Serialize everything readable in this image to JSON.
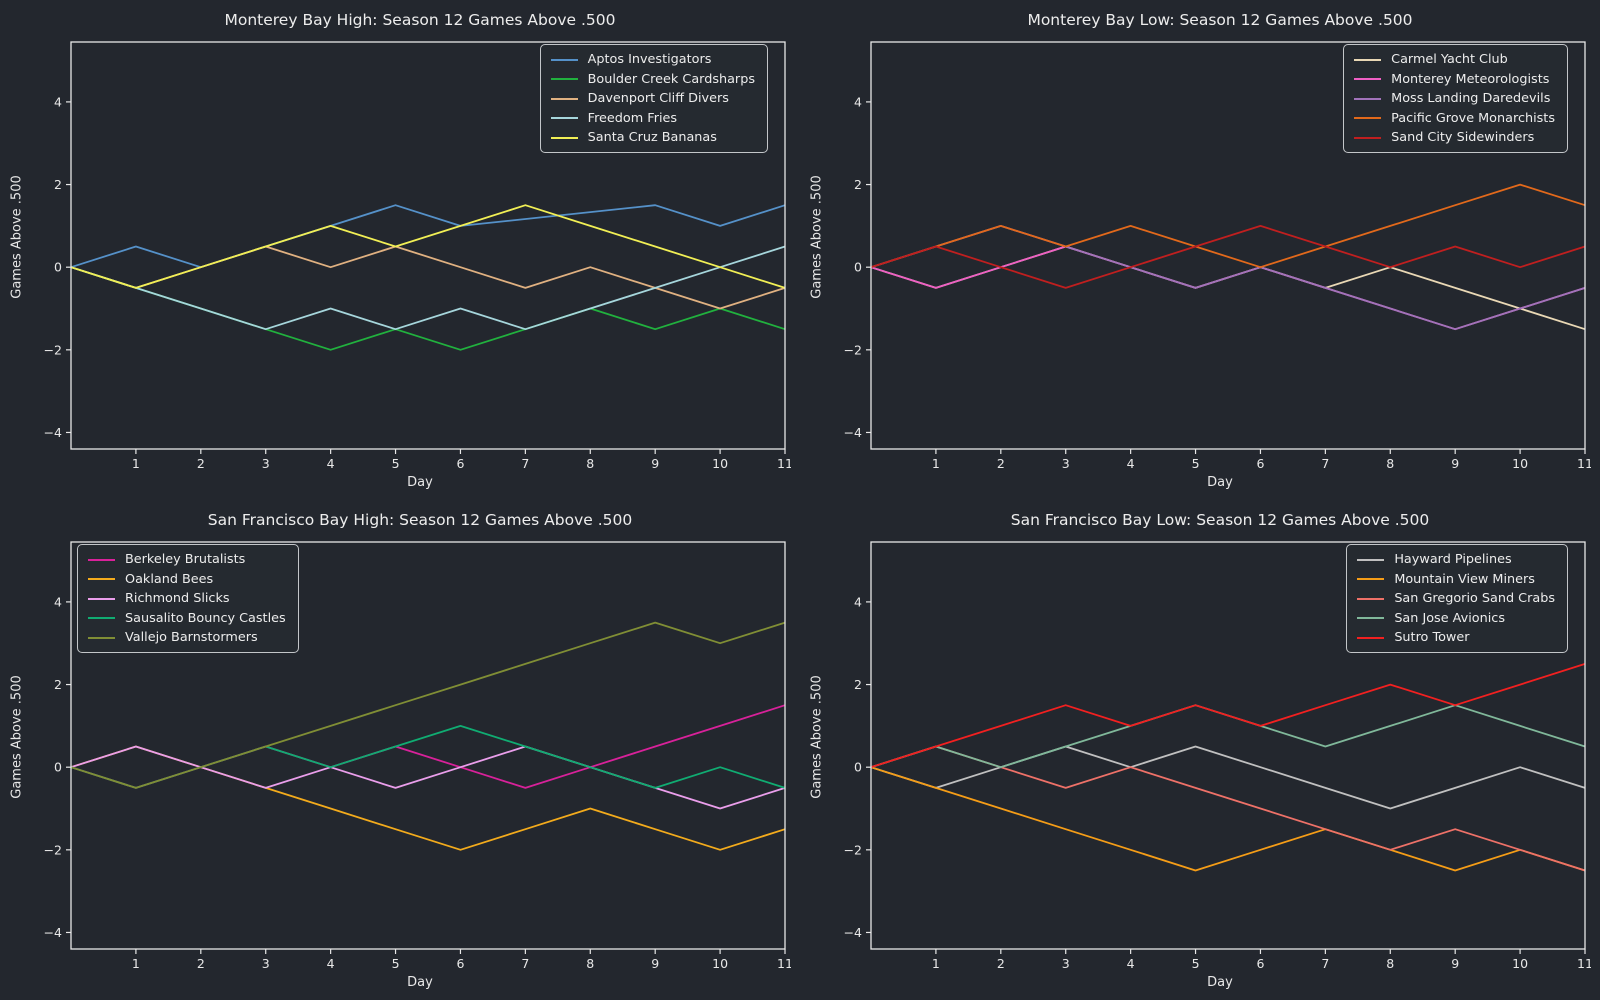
{
  "page": {
    "background": "#23272e",
    "text_color": "#eaeaea",
    "axis_color": "#e8e8e8"
  },
  "shared": {
    "xlabel": "Day",
    "ylabel": "Games Above .500",
    "x_ticks": [
      1,
      2,
      3,
      4,
      5,
      6,
      7,
      8,
      9,
      10,
      11
    ],
    "y_ticks": [
      -4,
      -2,
      0,
      2,
      4
    ],
    "xlim": [
      0,
      11
    ],
    "ylim": [
      -4.4,
      5.45
    ],
    "grid": false
  },
  "chart_data": [
    {
      "type": "line",
      "title": "Monterey Bay High: Season 12 Games Above .500",
      "legend_position": "top-right",
      "series": [
        {
          "name": "Aptos Investigators",
          "color": "#5591c9",
          "points": [
            [
              0,
              0
            ],
            [
              1,
              0.5
            ],
            [
              2,
              0
            ],
            [
              3,
              0.5
            ],
            [
              4,
              1
            ],
            [
              5,
              1.5
            ],
            [
              6,
              1
            ],
            [
              9,
              1.5
            ],
            [
              10,
              1
            ],
            [
              11,
              1.5
            ]
          ]
        },
        {
          "name": "Boulder Creek Cardsharps",
          "color": "#21b13e",
          "points": [
            [
              0,
              0
            ],
            [
              1,
              -0.5
            ],
            [
              2,
              -1
            ],
            [
              3,
              -1.5
            ],
            [
              4,
              -2
            ],
            [
              5,
              -1.5
            ],
            [
              6,
              -2
            ],
            [
              7,
              -1.5
            ],
            [
              8,
              -1
            ],
            [
              9,
              -1.5
            ],
            [
              10,
              -1
            ],
            [
              11,
              -1.5
            ]
          ]
        },
        {
          "name": "Davenport Cliff Divers",
          "color": "#e0b181",
          "points": [
            [
              0,
              0
            ],
            [
              1,
              -0.5
            ],
            [
              2,
              0
            ],
            [
              3,
              0.5
            ],
            [
              4,
              0
            ],
            [
              5,
              0.5
            ],
            [
              6,
              0
            ],
            [
              7,
              -0.5
            ],
            [
              8,
              0
            ],
            [
              9,
              -0.5
            ],
            [
              10,
              -1
            ],
            [
              11,
              -0.5
            ]
          ]
        },
        {
          "name": "Freedom Fries",
          "color": "#a6d6dc",
          "points": [
            [
              0,
              0
            ],
            [
              1,
              -0.5
            ],
            [
              2,
              -1
            ],
            [
              3,
              -1.5
            ],
            [
              4,
              -1
            ],
            [
              5,
              -1.5
            ],
            [
              6,
              -1
            ],
            [
              7,
              -1.5
            ],
            [
              8,
              -1
            ],
            [
              9,
              -0.5
            ],
            [
              10,
              0
            ],
            [
              11,
              0.5
            ]
          ]
        },
        {
          "name": "Santa Cruz Bananas",
          "color": "#f1ef55",
          "points": [
            [
              0,
              0
            ],
            [
              1,
              -0.5
            ],
            [
              2,
              0
            ],
            [
              3,
              0.5
            ],
            [
              4,
              1
            ],
            [
              5,
              0.5
            ],
            [
              6,
              1
            ],
            [
              7,
              1.5
            ],
            [
              8,
              1
            ],
            [
              9,
              0.5
            ],
            [
              10,
              0
            ],
            [
              11,
              -0.5
            ]
          ]
        }
      ]
    },
    {
      "type": "line",
      "title": "Monterey Bay Low: Season 12 Games Above .500",
      "legend_position": "top-right",
      "series": [
        {
          "name": "Carmel Yacht Club",
          "color": "#e9d8b5",
          "points": [
            [
              0,
              0
            ],
            [
              1,
              -0.5
            ],
            [
              2,
              0
            ],
            [
              3,
              0.5
            ],
            [
              4,
              0
            ],
            [
              5,
              -0.5
            ],
            [
              6,
              0
            ],
            [
              7,
              -0.5
            ],
            [
              8,
              0
            ],
            [
              9,
              -0.5
            ],
            [
              10,
              -1
            ],
            [
              11,
              -1.5
            ]
          ]
        },
        {
          "name": "Monterey Meteorologists",
          "color": "#ef5fc4",
          "points": [
            [
              0,
              0
            ],
            [
              1,
              -0.5
            ],
            [
              2,
              0
            ],
            [
              3,
              0.5
            ],
            [
              4,
              0
            ],
            [
              5,
              -0.5
            ],
            [
              6,
              0
            ],
            [
              7,
              -0.5
            ],
            [
              8,
              -1
            ],
            [
              9,
              -1.5
            ],
            [
              10,
              -1
            ],
            [
              11,
              -0.5
            ]
          ]
        },
        {
          "name": "Moss Landing Daredevils",
          "color": "#a173ba",
          "points": [
            [
              0,
              0
            ],
            [
              1,
              0.5
            ],
            [
              2,
              1
            ],
            [
              3,
              0.5
            ],
            [
              4,
              0
            ],
            [
              5,
              -0.5
            ],
            [
              6,
              0
            ],
            [
              7,
              -0.5
            ],
            [
              8,
              -1
            ],
            [
              9,
              -1.5
            ],
            [
              10,
              -1
            ],
            [
              11,
              -0.5
            ]
          ]
        },
        {
          "name": "Pacific Grove Monarchists",
          "color": "#e2691b",
          "points": [
            [
              0,
              0
            ],
            [
              1,
              0.5
            ],
            [
              2,
              1
            ],
            [
              3,
              0.5
            ],
            [
              4,
              1
            ],
            [
              5,
              0.5
            ],
            [
              6,
              0
            ],
            [
              7,
              0.5
            ],
            [
              8,
              1
            ],
            [
              9,
              1.5
            ],
            [
              10,
              2
            ],
            [
              11,
              1.5
            ]
          ]
        },
        {
          "name": "Sand City Sidewinders",
          "color": "#c01f1f",
          "points": [
            [
              0,
              0
            ],
            [
              1,
              0.5
            ],
            [
              2,
              0
            ],
            [
              3,
              -0.5
            ],
            [
              4,
              0
            ],
            [
              5,
              0.5
            ],
            [
              6,
              1
            ],
            [
              7,
              0.5
            ],
            [
              8,
              0
            ],
            [
              9,
              0.5
            ],
            [
              10,
              0
            ],
            [
              11,
              0.5
            ]
          ]
        }
      ]
    },
    {
      "type": "line",
      "title": "San Francisco Bay High: Season 12 Games Above .500",
      "legend_position": "top-left",
      "series": [
        {
          "name": "Berkeley Brutalists",
          "color": "#d8219a",
          "points": [
            [
              0,
              0
            ],
            [
              1,
              -0.5
            ],
            [
              2,
              0
            ],
            [
              3,
              0.5
            ],
            [
              4,
              0
            ],
            [
              5,
              0.5
            ],
            [
              6,
              0
            ],
            [
              7,
              -0.5
            ],
            [
              8,
              0
            ],
            [
              9,
              0.5
            ],
            [
              10,
              1
            ],
            [
              11,
              1.5
            ]
          ]
        },
        {
          "name": "Oakland Bees",
          "color": "#f3ab1c",
          "points": [
            [
              0,
              0
            ],
            [
              1,
              0.5
            ],
            [
              2,
              0
            ],
            [
              3,
              -0.5
            ],
            [
              4,
              -1
            ],
            [
              5,
              -1.5
            ],
            [
              6,
              -2
            ],
            [
              7,
              -1.5
            ],
            [
              8,
              -1
            ],
            [
              9,
              -1.5
            ],
            [
              10,
              -2
            ],
            [
              11,
              -1.5
            ]
          ]
        },
        {
          "name": "Richmond Slicks",
          "color": "#ea9eeb",
          "points": [
            [
              0,
              0
            ],
            [
              1,
              0.5
            ],
            [
              2,
              0
            ],
            [
              3,
              -0.5
            ],
            [
              4,
              0
            ],
            [
              5,
              -0.5
            ],
            [
              6,
              0
            ],
            [
              7,
              0.5
            ],
            [
              8,
              0
            ],
            [
              9,
              -0.5
            ],
            [
              10,
              -1
            ],
            [
              11,
              -0.5
            ]
          ]
        },
        {
          "name": "Sausalito Bouncy Castles",
          "color": "#10ac72",
          "points": [
            [
              0,
              0
            ],
            [
              1,
              -0.5
            ],
            [
              2,
              0
            ],
            [
              3,
              0.5
            ],
            [
              4,
              0
            ],
            [
              5,
              0.5
            ],
            [
              6,
              1
            ],
            [
              7,
              0.5
            ],
            [
              8,
              0
            ],
            [
              9,
              -0.5
            ],
            [
              10,
              0
            ],
            [
              11,
              -0.5
            ]
          ]
        },
        {
          "name": "Vallejo Barnstormers",
          "color": "#808e35",
          "points": [
            [
              0,
              0
            ],
            [
              1,
              -0.5
            ],
            [
              2,
              0
            ],
            [
              3,
              0.5
            ],
            [
              4,
              1
            ],
            [
              5,
              1.5
            ],
            [
              6,
              2
            ],
            [
              7,
              2.5
            ],
            [
              8,
              3
            ],
            [
              9,
              3.5
            ],
            [
              10,
              3
            ],
            [
              11,
              3.5
            ]
          ]
        }
      ]
    },
    {
      "type": "line",
      "title": "San Francisco Bay Low: Season 12 Games Above .500",
      "legend_position": "top-right",
      "series": [
        {
          "name": "Hayward Pipelines",
          "color": "#c0c0c0",
          "points": [
            [
              0,
              0
            ],
            [
              1,
              -0.5
            ],
            [
              2,
              0
            ],
            [
              3,
              0.5
            ],
            [
              4,
              0
            ],
            [
              5,
              0.5
            ],
            [
              6,
              0
            ],
            [
              7,
              -0.5
            ],
            [
              8,
              -1
            ],
            [
              9,
              -0.5
            ],
            [
              10,
              0
            ],
            [
              11,
              -0.5
            ]
          ]
        },
        {
          "name": "Mountain View Miners",
          "color": "#f59d17",
          "points": [
            [
              0,
              0
            ],
            [
              1,
              -0.5
            ],
            [
              2,
              -1
            ],
            [
              3,
              -1.5
            ],
            [
              4,
              -2
            ],
            [
              5,
              -2.5
            ],
            [
              6,
              -2
            ],
            [
              7,
              -1.5
            ],
            [
              8,
              -2
            ],
            [
              9,
              -2.5
            ],
            [
              10,
              -2
            ],
            [
              11,
              -2.5
            ]
          ]
        },
        {
          "name": "San Gregorio Sand Crabs",
          "color": "#ee7168",
          "points": [
            [
              0,
              0
            ],
            [
              1,
              0.5
            ],
            [
              2,
              0
            ],
            [
              3,
              -0.5
            ],
            [
              4,
              0
            ],
            [
              5,
              -0.5
            ],
            [
              6,
              -1
            ],
            [
              7,
              -1.5
            ],
            [
              8,
              -2
            ],
            [
              9,
              -1.5
            ],
            [
              10,
              -2
            ],
            [
              11,
              -2.5
            ]
          ]
        },
        {
          "name": "San Jose Avionics",
          "color": "#80b89a",
          "points": [
            [
              0,
              0
            ],
            [
              1,
              0.5
            ],
            [
              2,
              0
            ],
            [
              3,
              0.5
            ],
            [
              4,
              1
            ],
            [
              5,
              1.5
            ],
            [
              6,
              1
            ],
            [
              7,
              0.5
            ],
            [
              8,
              1
            ],
            [
              9,
              1.5
            ],
            [
              10,
              1
            ],
            [
              11,
              0.5
            ]
          ]
        },
        {
          "name": "Sutro Tower",
          "color": "#f22020",
          "points": [
            [
              0,
              0
            ],
            [
              1,
              0.5
            ],
            [
              2,
              1
            ],
            [
              3,
              1.5
            ],
            [
              4,
              1
            ],
            [
              5,
              1.5
            ],
            [
              6,
              1
            ],
            [
              7,
              1.5
            ],
            [
              8,
              2
            ],
            [
              9,
              1.5
            ],
            [
              10,
              2
            ],
            [
              11,
              2.5
            ]
          ]
        }
      ]
    }
  ]
}
